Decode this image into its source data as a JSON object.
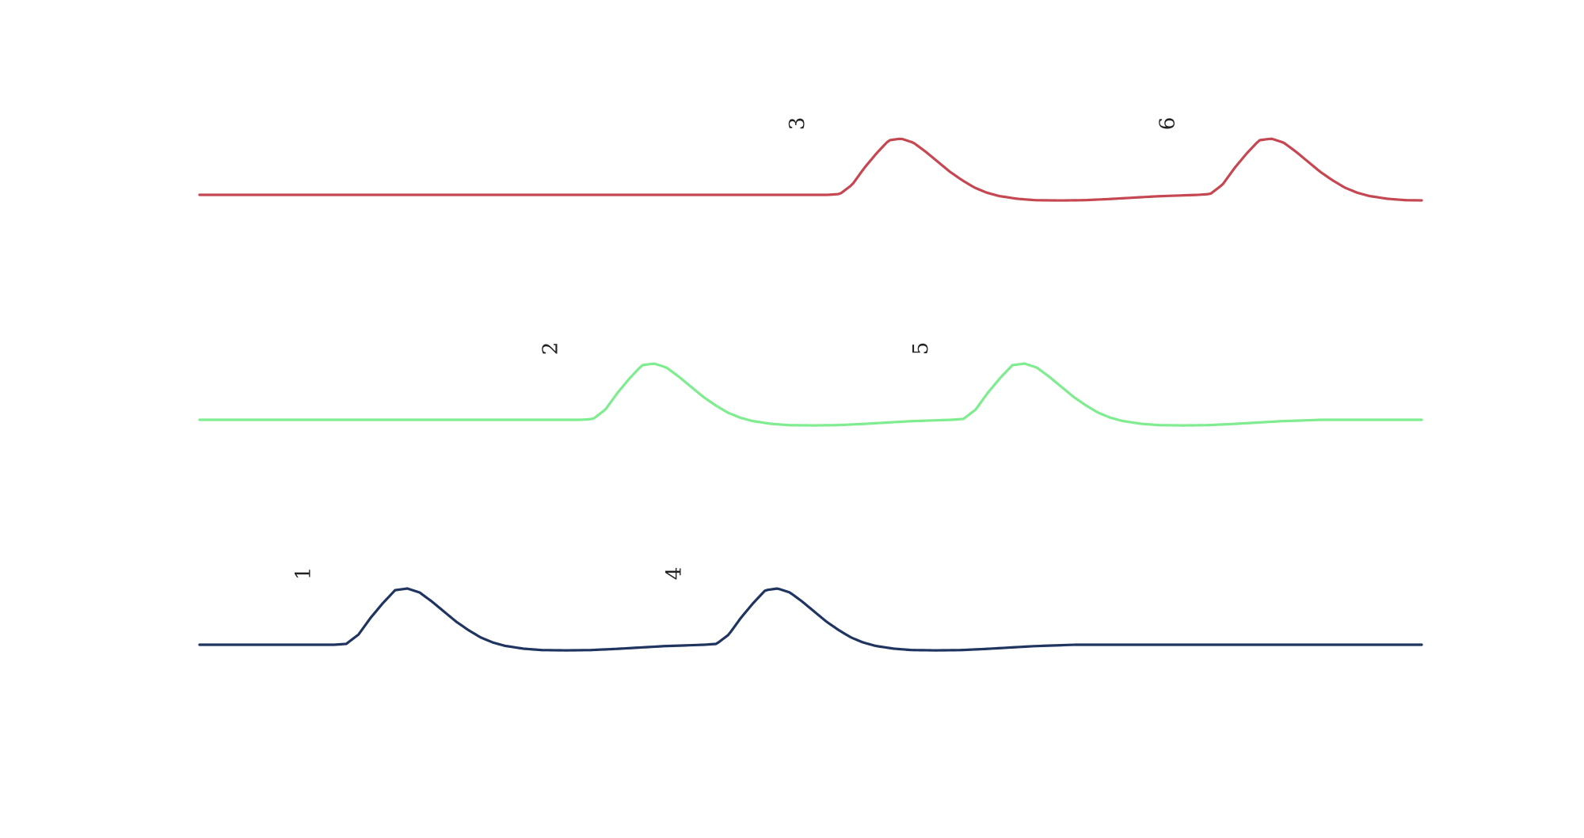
{
  "chart_data": {
    "type": "line",
    "title": "",
    "xlabel": "",
    "ylabel": "",
    "grid": false,
    "legend": "none",
    "axes_visible": false,
    "x_range": [
      0,
      100
    ],
    "baseline_y": 0,
    "series": [
      {
        "color": "#1f3560",
        "pulse_peak": 1.0,
        "pulse_undershoot": -0.1,
        "pulses": [
          {
            "label": "1",
            "onset_x": 11
          },
          {
            "label": "4",
            "onset_x": 41.3
          }
        ]
      },
      {
        "color": "#7eec8f",
        "pulse_peak": 1.0,
        "pulse_undershoot": -0.1,
        "pulses": [
          {
            "label": "2",
            "onset_x": 31.2
          },
          {
            "label": "5",
            "onset_x": 61.5
          }
        ]
      },
      {
        "color": "#c54752",
        "pulse_peak": 1.0,
        "pulse_undershoot": -0.1,
        "pulses": [
          {
            "label": "3",
            "onset_x": 51.4
          },
          {
            "label": "6",
            "onset_x": 81.7
          }
        ]
      }
    ]
  }
}
